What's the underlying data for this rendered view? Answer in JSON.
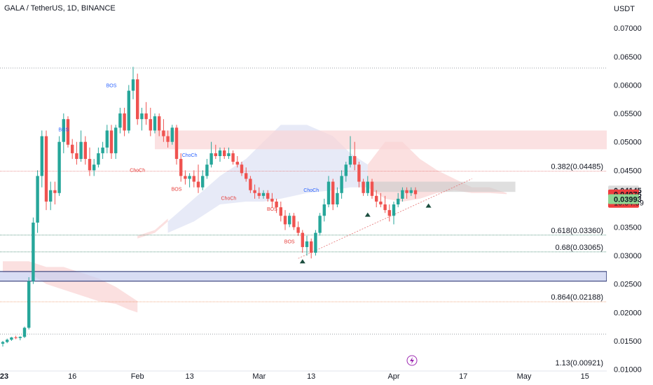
{
  "header": {
    "symbol_line": "GALA / TetherUS, 1D, BINANCE"
  },
  "colors": {
    "up": "#26a69a",
    "down": "#ef5350",
    "cloud_red": "#f7c7c7",
    "cloud_blue": "#d4d9f1",
    "zone_red": "#f9d4d6",
    "zone_gray": "#c9c9c9",
    "zone_blue": "#c8cff0",
    "fib_red": "#e57373",
    "fib_green": "#2e7d62",
    "fib_orange": "#e8783a"
  },
  "chart_data": {
    "type": "candlestick",
    "y_unit_label": "USDT",
    "ylim": [
      0.0097,
      0.072
    ],
    "y_ticks": [
      "0.07000",
      "0.06500",
      "0.06000",
      "0.05500",
      "0.05000",
      "0.04500",
      "0.03500",
      "0.03000",
      "0.02500",
      "0.02000",
      "0.01500",
      "0.01000"
    ],
    "x_ticks": [
      {
        "label": "23",
        "day": 0
      },
      {
        "label": "16",
        "day": 16
      },
      {
        "label": "Feb",
        "day": 31
      },
      {
        "label": "13",
        "day": 43
      },
      {
        "label": "Mar",
        "day": 59
      },
      {
        "label": "13",
        "day": 71
      },
      {
        "label": "Apr",
        "day": 90
      },
      {
        "label": "17",
        "day": 106
      },
      {
        "label": "May",
        "day": 120
      },
      {
        "label": "15",
        "day": 134
      }
    ],
    "price_badges": [
      {
        "text": "0.04145",
        "value": 0.04145,
        "bg": "#dcdcdc",
        "fg": "#131722"
      },
      {
        "text": "0.04076",
        "value": 0.04076,
        "bg": "#ef3d3d",
        "fg": "#ffffff",
        "sub": "10:04:59"
      },
      {
        "text": "0.03993",
        "value": 0.03993,
        "bg": "#8fd694",
        "fg": "#131722"
      }
    ],
    "fib_levels": [
      {
        "label": "0.382(0.04485)",
        "value": 0.04485,
        "color": "red"
      },
      {
        "label": "0.618(0.03360)",
        "value": 0.0336,
        "color": "green"
      },
      {
        "label": "0.68(0.03065)",
        "value": 0.03065,
        "color": "green"
      },
      {
        "label": "0.864(0.02188)",
        "value": 0.02188,
        "color": "orange"
      },
      {
        "label": "1.13(0.00921)",
        "value": 0.00921,
        "color": "gray"
      }
    ],
    "reference_lines": [
      0.063,
      0.0162
    ],
    "annotations": [
      {
        "text": "BOS",
        "day": 25,
        "value": 0.0596,
        "color": "blue"
      },
      {
        "text": "BOS",
        "day": 14,
        "value": 0.0519,
        "color": "blue"
      },
      {
        "text": "ChoCh",
        "day": 31,
        "value": 0.0447,
        "color": "red"
      },
      {
        "text": "ChoCh",
        "day": 43,
        "value": 0.0474,
        "color": "blue"
      },
      {
        "text": "BOS",
        "day": 40,
        "value": 0.0414,
        "color": "red"
      },
      {
        "text": "ChoCh",
        "day": 52,
        "value": 0.0398,
        "color": "red"
      },
      {
        "text": "BOS",
        "day": 62,
        "value": 0.0379,
        "color": "red"
      },
      {
        "text": "ChoCh",
        "day": 71,
        "value": 0.0412,
        "color": "blue"
      },
      {
        "text": "BOS",
        "day": 66,
        "value": 0.0322,
        "color": "red"
      }
    ],
    "candles": [
      [
        0.0145,
        0.015,
        0.014,
        0.0148
      ],
      [
        0.0148,
        0.0154,
        0.0146,
        0.0152
      ],
      [
        0.0152,
        0.0157,
        0.015,
        0.0156
      ],
      [
        0.0156,
        0.0159,
        0.0153,
        0.0155
      ],
      [
        0.0155,
        0.0158,
        0.0151,
        0.0157
      ],
      [
        0.0157,
        0.0175,
        0.0155,
        0.0173
      ],
      [
        0.0173,
        0.0262,
        0.017,
        0.0255
      ],
      [
        0.0255,
        0.0367,
        0.025,
        0.0358
      ],
      [
        0.0358,
        0.045,
        0.034,
        0.044
      ],
      [
        0.044,
        0.052,
        0.042,
        0.051
      ],
      [
        0.051,
        0.052,
        0.038,
        0.0395
      ],
      [
        0.0395,
        0.043,
        0.038,
        0.0415
      ],
      [
        0.0415,
        0.043,
        0.039,
        0.041
      ],
      [
        0.041,
        0.051,
        0.0405,
        0.05
      ],
      [
        0.05,
        0.055,
        0.048,
        0.054
      ],
      [
        0.054,
        0.0545,
        0.049,
        0.0495
      ],
      [
        0.0495,
        0.0505,
        0.047,
        0.048
      ],
      [
        0.048,
        0.05,
        0.046,
        0.047
      ],
      [
        0.047,
        0.052,
        0.0465,
        0.05
      ],
      [
        0.05,
        0.051,
        0.046,
        0.047
      ],
      [
        0.047,
        0.049,
        0.044,
        0.045
      ],
      [
        0.045,
        0.047,
        0.044,
        0.046
      ],
      [
        0.046,
        0.049,
        0.0455,
        0.048
      ],
      [
        0.048,
        0.05,
        0.047,
        0.049
      ],
      [
        0.049,
        0.053,
        0.048,
        0.052
      ],
      [
        0.052,
        0.053,
        0.047,
        0.048
      ],
      [
        0.048,
        0.053,
        0.047,
        0.0525
      ],
      [
        0.0525,
        0.056,
        0.0515,
        0.055
      ],
      [
        0.055,
        0.056,
        0.051,
        0.052
      ],
      [
        0.052,
        0.06,
        0.0515,
        0.059
      ],
      [
        0.059,
        0.0632,
        0.0575,
        0.061
      ],
      [
        0.061,
        0.062,
        0.053,
        0.054
      ],
      [
        0.054,
        0.056,
        0.052,
        0.055
      ],
      [
        0.055,
        0.057,
        0.053,
        0.054
      ],
      [
        0.054,
        0.056,
        0.051,
        0.052
      ],
      [
        0.052,
        0.055,
        0.0515,
        0.0545
      ],
      [
        0.0545,
        0.055,
        0.051,
        0.052
      ],
      [
        0.052,
        0.054,
        0.05,
        0.051
      ],
      [
        0.051,
        0.052,
        0.049,
        0.05
      ],
      [
        0.05,
        0.053,
        0.0495,
        0.0525
      ],
      [
        0.0525,
        0.053,
        0.046,
        0.047
      ],
      [
        0.047,
        0.048,
        0.043,
        0.044
      ],
      [
        0.044,
        0.045,
        0.0425,
        0.0435
      ],
      [
        0.0435,
        0.0445,
        0.042,
        0.044
      ],
      [
        0.044,
        0.045,
        0.042,
        0.043
      ],
      [
        0.043,
        0.046,
        0.041,
        0.042
      ],
      [
        0.042,
        0.045,
        0.0415,
        0.044
      ],
      [
        0.044,
        0.047,
        0.0435,
        0.046
      ],
      [
        0.046,
        0.05,
        0.0455,
        0.048
      ],
      [
        0.048,
        0.0495,
        0.047,
        0.0475
      ],
      [
        0.0475,
        0.049,
        0.0465,
        0.0485
      ],
      [
        0.0485,
        0.049,
        0.047,
        0.0475
      ],
      [
        0.0475,
        0.049,
        0.047,
        0.048
      ],
      [
        0.048,
        0.0485,
        0.046,
        0.0465
      ],
      [
        0.0465,
        0.0475,
        0.0455,
        0.046
      ],
      [
        0.046,
        0.0465,
        0.044,
        0.0445
      ],
      [
        0.0445,
        0.0455,
        0.043,
        0.0435
      ],
      [
        0.0435,
        0.044,
        0.041,
        0.0415
      ],
      [
        0.0415,
        0.0425,
        0.04,
        0.041
      ],
      [
        0.041,
        0.042,
        0.04,
        0.0405
      ],
      [
        0.0405,
        0.0415,
        0.04,
        0.041
      ],
      [
        0.041,
        0.0415,
        0.0395,
        0.04
      ],
      [
        0.04,
        0.041,
        0.0385,
        0.0395
      ],
      [
        0.0395,
        0.04,
        0.0375,
        0.0385
      ],
      [
        0.0385,
        0.0395,
        0.036,
        0.037
      ],
      [
        0.037,
        0.038,
        0.0345,
        0.0355
      ],
      [
        0.0355,
        0.0375,
        0.035,
        0.037
      ],
      [
        0.037,
        0.0375,
        0.0345,
        0.035
      ],
      [
        0.035,
        0.036,
        0.0335,
        0.034
      ],
      [
        0.034,
        0.0345,
        0.0305,
        0.0315
      ],
      [
        0.0315,
        0.0335,
        0.03,
        0.0325
      ],
      [
        0.0325,
        0.033,
        0.0295,
        0.0305
      ],
      [
        0.0305,
        0.0345,
        0.03,
        0.034
      ],
      [
        0.034,
        0.0375,
        0.0335,
        0.037
      ],
      [
        0.037,
        0.04,
        0.036,
        0.039
      ],
      [
        0.039,
        0.044,
        0.0385,
        0.043
      ],
      [
        0.043,
        0.0435,
        0.038,
        0.039
      ],
      [
        0.039,
        0.042,
        0.0385,
        0.041
      ],
      [
        0.041,
        0.045,
        0.04,
        0.044
      ],
      [
        0.044,
        0.0465,
        0.043,
        0.046
      ],
      [
        0.046,
        0.051,
        0.0455,
        0.0475
      ],
      [
        0.0475,
        0.05,
        0.045,
        0.046
      ],
      [
        0.046,
        0.0465,
        0.042,
        0.043
      ],
      [
        0.043,
        0.0435,
        0.0405,
        0.041
      ],
      [
        0.041,
        0.044,
        0.0405,
        0.043
      ],
      [
        0.043,
        0.0435,
        0.04,
        0.0405
      ],
      [
        0.0405,
        0.0415,
        0.0385,
        0.0395
      ],
      [
        0.0395,
        0.041,
        0.0385,
        0.039
      ],
      [
        0.039,
        0.0405,
        0.0375,
        0.038
      ],
      [
        0.038,
        0.039,
        0.036,
        0.037
      ],
      [
        0.037,
        0.0395,
        0.0355,
        0.039
      ],
      [
        0.039,
        0.041,
        0.0385,
        0.04
      ],
      [
        0.04,
        0.042,
        0.0395,
        0.0415
      ],
      [
        0.0415,
        0.042,
        0.04,
        0.041
      ],
      [
        0.041,
        0.042,
        0.0405,
        0.0415
      ],
      [
        0.0415,
        0.042,
        0.04,
        0.0408
      ]
    ],
    "cloud_red_upper": [
      [
        0,
        0.029
      ],
      [
        6,
        0.029
      ],
      [
        10,
        0.028
      ],
      [
        14,
        0.028
      ],
      [
        18,
        0.027
      ],
      [
        22,
        0.026
      ],
      [
        26,
        0.0245
      ],
      [
        29,
        0.023
      ],
      [
        31,
        0.022
      ],
      [
        31,
        0.0335
      ],
      [
        35,
        0.0345
      ],
      [
        38,
        0.0365
      ]
    ],
    "cloud_red_lower": [
      [
        0,
        0.027
      ],
      [
        6,
        0.027
      ],
      [
        10,
        0.025
      ],
      [
        14,
        0.024
      ],
      [
        18,
        0.023
      ],
      [
        22,
        0.022
      ],
      [
        26,
        0.0215
      ],
      [
        29,
        0.0205
      ],
      [
        31,
        0.02
      ],
      [
        31,
        0.033
      ],
      [
        35,
        0.034
      ],
      [
        38,
        0.036
      ]
    ],
    "cloud_blue_upper": [
      [
        38,
        0.036
      ],
      [
        44,
        0.04
      ],
      [
        50,
        0.044
      ],
      [
        56,
        0.047
      ],
      [
        60,
        0.05
      ],
      [
        64,
        0.053
      ],
      [
        70,
        0.053
      ],
      [
        76,
        0.051
      ],
      [
        80,
        0.048
      ],
      [
        84,
        0.046
      ]
    ],
    "cloud_blue_lower": [
      [
        38,
        0.034
      ],
      [
        44,
        0.036
      ],
      [
        50,
        0.039
      ],
      [
        56,
        0.0395
      ],
      [
        60,
        0.0395
      ],
      [
        64,
        0.04
      ],
      [
        70,
        0.041
      ],
      [
        76,
        0.0415
      ],
      [
        80,
        0.042
      ],
      [
        84,
        0.042
      ]
    ],
    "cloud_future_upper": [
      [
        84,
        0.046
      ],
      [
        88,
        0.05
      ],
      [
        92,
        0.05
      ],
      [
        96,
        0.047
      ],
      [
        100,
        0.045
      ],
      [
        104,
        0.0435
      ],
      [
        108,
        0.042
      ],
      [
        112,
        0.042
      ],
      [
        116,
        0.041
      ]
    ],
    "cloud_future_lower": [
      [
        84,
        0.042
      ],
      [
        88,
        0.04
      ],
      [
        92,
        0.0395
      ],
      [
        96,
        0.04
      ],
      [
        100,
        0.041
      ],
      [
        104,
        0.0415
      ],
      [
        108,
        0.041
      ],
      [
        112,
        0.041
      ],
      [
        116,
        0.0408
      ]
    ],
    "zones": [
      {
        "type": "red",
        "d0": 35,
        "d1": 142,
        "v0": 0.0487,
        "v1": 0.052
      },
      {
        "type": "gray",
        "d0": 85,
        "d1": 118,
        "v0": 0.0412,
        "v1": 0.043
      },
      {
        "type": "blue",
        "d0": -1,
        "d1": 139,
        "v0": 0.0255,
        "v1": 0.0272
      }
    ],
    "trendline": [
      [
        68,
        0.0295
      ],
      [
        108,
        0.0435
      ]
    ],
    "markers": [
      [
        69,
        0.029
      ],
      [
        84,
        0.0372
      ],
      [
        98,
        0.0388
      ]
    ]
  }
}
